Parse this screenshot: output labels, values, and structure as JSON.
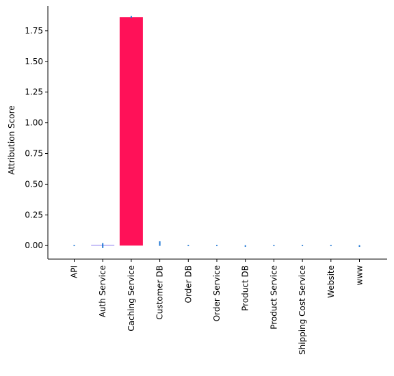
{
  "chart_data": {
    "type": "bar",
    "title": "",
    "xlabel": "",
    "ylabel": "Attribution Score",
    "categories": [
      "API",
      "Auth Service",
      "Caching Service",
      "Customer DB",
      "Order DB",
      "Order Service",
      "Product DB",
      "Product Service",
      "Shipping Cost Service",
      "Website",
      "www"
    ],
    "values": [
      0.0,
      0.005,
      1.86,
      0.0,
      0.0,
      0.0,
      0.0,
      0.0,
      0.0,
      0.0,
      0.0
    ],
    "error_low": [
      -0.004,
      -0.02,
      1.855,
      -0.002,
      -0.001,
      -0.004,
      -0.01,
      -0.004,
      -0.004,
      -0.004,
      -0.01
    ],
    "error_high": [
      0.004,
      0.02,
      1.87,
      0.035,
      0.001,
      0.004,
      0.003,
      0.004,
      0.004,
      0.004,
      0.003
    ],
    "ylim": [
      -0.11,
      1.95
    ],
    "yticks": [
      0.0,
      0.25,
      0.5,
      0.75,
      1.0,
      1.25,
      1.5,
      1.75
    ],
    "ytick_labels": [
      "0.00",
      "0.25",
      "0.50",
      "0.75",
      "1.00",
      "1.25",
      "1.50",
      "1.75"
    ],
    "grid": false,
    "legend": "none",
    "colors": {
      "highlight_bar": "#ff1158",
      "normal_bar": "#7b68ee",
      "error_bar": "#1f77d4",
      "axis": "#000000"
    },
    "highlight_index": 2
  }
}
